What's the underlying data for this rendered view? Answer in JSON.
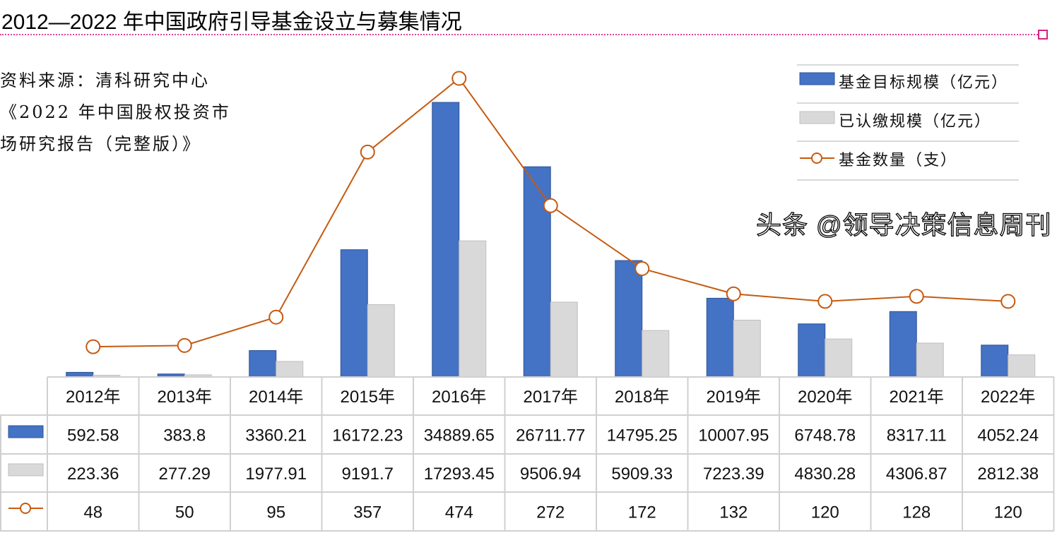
{
  "title": "2012—2022 年中国政府引导基金设立与募集情况",
  "source_lines": [
    "资料来源：清科研究中心",
    "《2022 年中国股权投资市",
    "场研究报告（完整版）》"
  ],
  "watermark": "头条 @领导决策信息周刊",
  "colors": {
    "target": "#4472c4",
    "paid": "#d9d9d9",
    "count": "#c55a11",
    "title_rule": "#e0449a"
  },
  "chart_data": {
    "type": "bar",
    "title": "2012—2022 年中国政府引导基金设立与募集情况",
    "categories": [
      "2012年",
      "2013年",
      "2014年",
      "2015年",
      "2016年",
      "2017年",
      "2018年",
      "2019年",
      "2020年",
      "2021年",
      "2022年"
    ],
    "series": [
      {
        "name": "基金目标规模（亿元）",
        "type": "bar",
        "axis": "primary",
        "values": [
          592.58,
          383.8,
          3360.21,
          16172.23,
          34889.65,
          26711.77,
          14795.25,
          10007.95,
          6748.78,
          8317.11,
          4052.24
        ],
        "labels": [
          "592.58",
          "383.8",
          "3360.21",
          "16172.23",
          "34889.65",
          "26711.77",
          "14795.25",
          "10007.95",
          "6748.78",
          "8317.11",
          "4052.24"
        ]
      },
      {
        "name": "已认缴规模（亿元）",
        "type": "bar",
        "axis": "primary",
        "values": [
          223.36,
          277.29,
          1977.91,
          9191.7,
          17293.45,
          9506.94,
          5909.33,
          7223.39,
          4830.28,
          4306.87,
          2812.38
        ],
        "labels": [
          "223.36",
          "277.29",
          "1977.91",
          "9191.7",
          "17293.45",
          "9506.94",
          "5909.33",
          "7223.39",
          "4830.28",
          "4306.87",
          "2812.38"
        ]
      },
      {
        "name": "基金数量（支）",
        "type": "line",
        "axis": "secondary",
        "values": [
          48,
          50,
          95,
          357,
          474,
          272,
          172,
          132,
          120,
          128,
          120
        ],
        "labels": [
          "48",
          "50",
          "95",
          "357",
          "474",
          "272",
          "172",
          "132",
          "120",
          "128",
          "120"
        ]
      }
    ],
    "primary_ylim": [
      0,
      35000
    ],
    "secondary_ylim": [
      0,
      474
    ],
    "grid": false,
    "legend": "top-right",
    "data_table": true
  }
}
